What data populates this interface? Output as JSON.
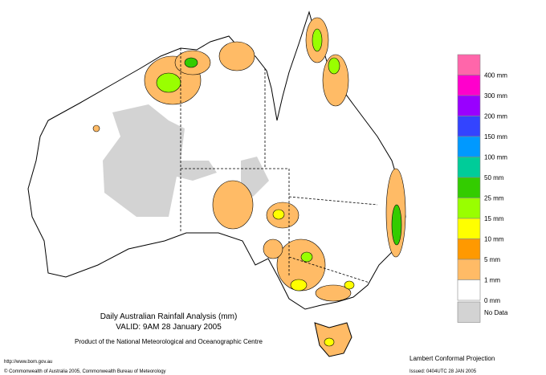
{
  "header": {
    "title": "Daily Australian Rainfall Analysis (mm)",
    "valid": "VALID: 9AM 28 January 2005",
    "product": "Product of the National Meteorological and Oceanographic Centre"
  },
  "footer": {
    "url": "http://www.bom.gov.au",
    "copyright": "© Commonwealth of Australia 2005, Commonwealth Bureau of Meteorology",
    "projection": "Lambert Conformal Projection",
    "issued": "Issued: 0404UTC 28 JAN 2005"
  },
  "legend": {
    "colors": [
      "#ff66aa",
      "#ff00cc",
      "#9900ff",
      "#3344ff",
      "#0099ff",
      "#00cc99",
      "#33cc00",
      "#99ff00",
      "#ffff00",
      "#ff9900",
      "#ffbb66",
      "#ffffff",
      "#d3d3d3"
    ],
    "labels": [
      "400 mm",
      "300 mm",
      "200 mm",
      "150 mm",
      "100 mm",
      "50 mm",
      "25 mm",
      "15 mm",
      "10 mm",
      "5 mm",
      "1 mm",
      "0 mm",
      "No Data"
    ]
  }
}
